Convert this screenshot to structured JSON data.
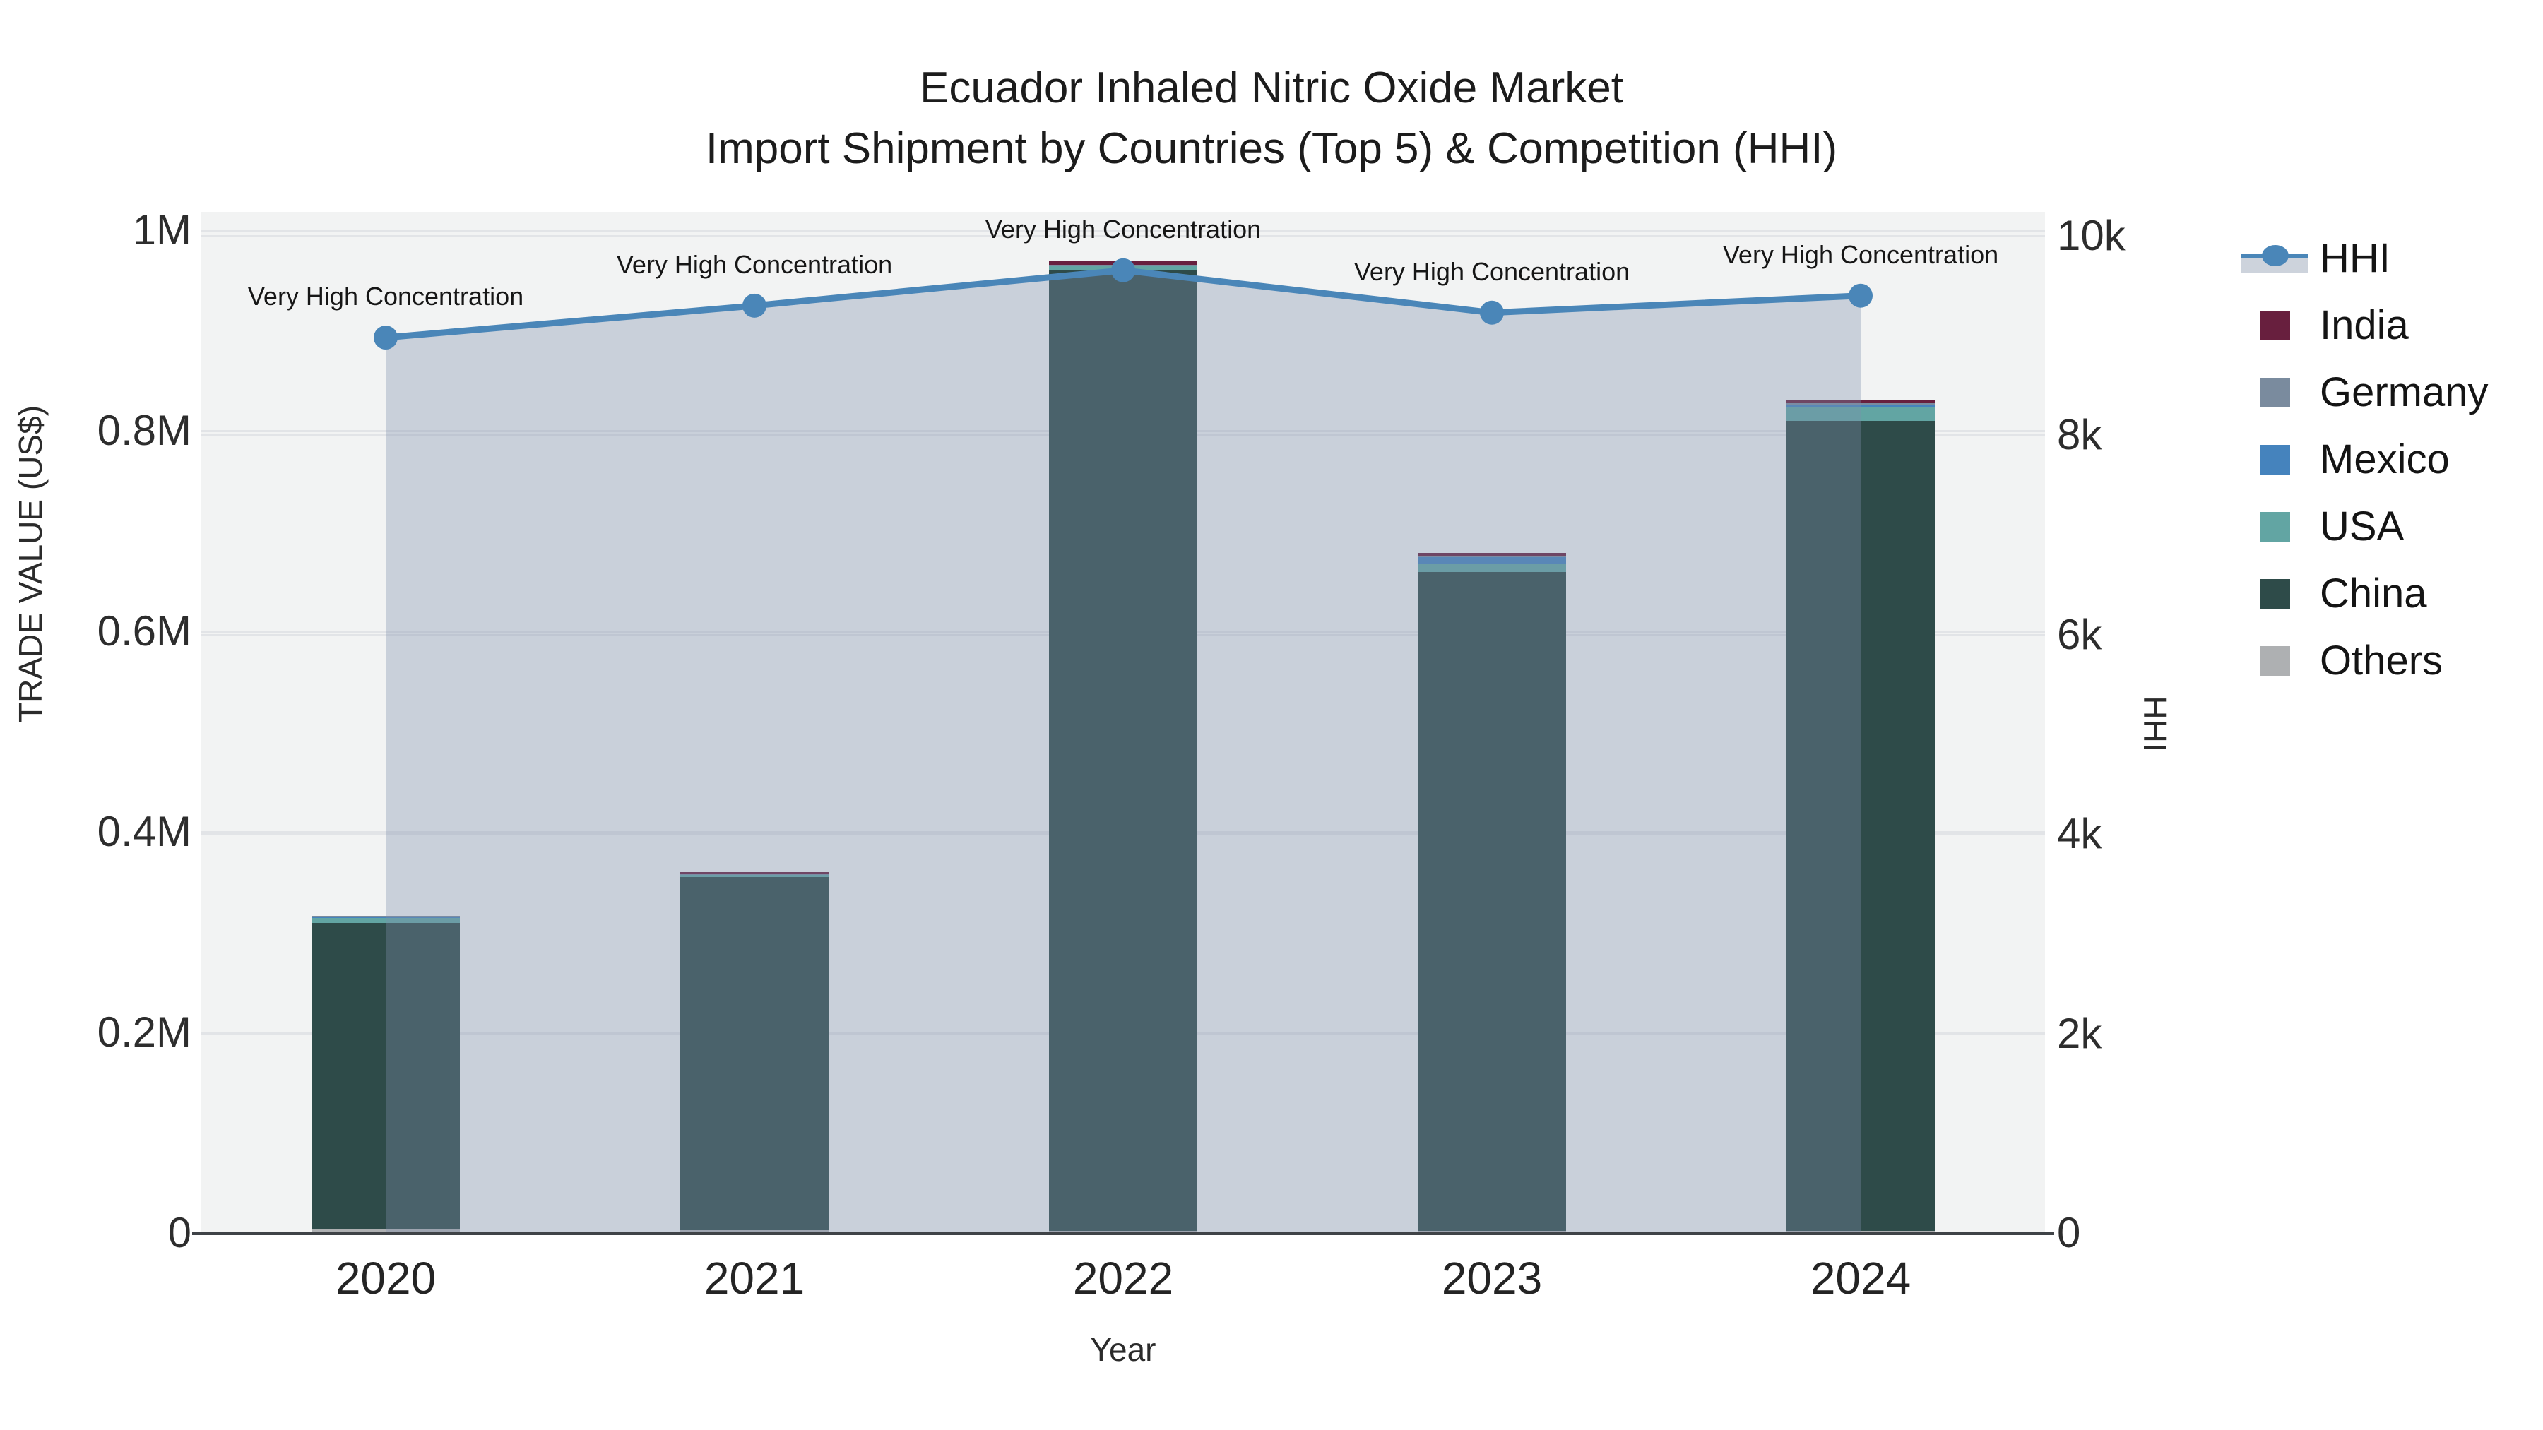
{
  "title": {
    "line1": "Ecuador Inhaled Nitric Oxide Market",
    "line2": "Import Shipment by Countries (Top 5) & Competition (HHI)"
  },
  "axes": {
    "y_left": {
      "title": "TRADE VALUE (US$)",
      "ticks": [
        {
          "label": "0",
          "value": 0
        },
        {
          "label": "0.2M",
          "value": 200000
        },
        {
          "label": "0.4M",
          "value": 400000
        },
        {
          "label": "0.6M",
          "value": 600000
        },
        {
          "label": "0.8M",
          "value": 800000
        },
        {
          "label": "1M",
          "value": 1000000
        }
      ]
    },
    "y_right": {
      "title": "HHI",
      "ticks": [
        {
          "label": "0",
          "value": 0
        },
        {
          "label": "2k",
          "value": 2000
        },
        {
          "label": "4k",
          "value": 4000
        },
        {
          "label": "6k",
          "value": 6000
        },
        {
          "label": "8k",
          "value": 8000
        },
        {
          "label": "10k",
          "value": 10000
        }
      ]
    },
    "x": {
      "title": "Year",
      "categories": [
        "2020",
        "2021",
        "2022",
        "2023",
        "2024"
      ]
    }
  },
  "legend": [
    {
      "label": "HHI",
      "type": "line",
      "color": "#4A86B8",
      "fill": "#CDD3DC"
    },
    {
      "label": "India",
      "type": "box",
      "color": "#681F3E"
    },
    {
      "label": "Germany",
      "type": "box",
      "color": "#7A8B9E"
    },
    {
      "label": "Mexico",
      "type": "box",
      "color": "#4583BD"
    },
    {
      "label": "USA",
      "type": "box",
      "color": "#62A5A3"
    },
    {
      "label": "China",
      "type": "box",
      "color": "#2E4B49"
    },
    {
      "label": "Others",
      "type": "box",
      "color": "#AEB0B2"
    }
  ],
  "chart_data": {
    "type": "combo-stacked-bar-line",
    "categories": [
      "2020",
      "2021",
      "2022",
      "2023",
      "2024"
    ],
    "bar_stack_order_bottom_to_top": [
      "Others",
      "China",
      "USA",
      "Mexico",
      "Germany",
      "India"
    ],
    "series": [
      {
        "name": "Others",
        "color": "#AEB0B2",
        "values": [
          4000,
          3000,
          2000,
          2000,
          2000
        ]
      },
      {
        "name": "China",
        "color": "#2E4B49",
        "values": [
          305000,
          352000,
          958000,
          657000,
          808000
        ]
      },
      {
        "name": "USA",
        "color": "#62A5A3",
        "values": [
          5000,
          2000,
          4000,
          8000,
          13000
        ]
      },
      {
        "name": "Mexico",
        "color": "#4583BD",
        "values": [
          500,
          0,
          500,
          7000,
          2500
        ]
      },
      {
        "name": "Germany",
        "color": "#7A8B9E",
        "values": [
          1500,
          500,
          1000,
          1500,
          2000
        ]
      },
      {
        "name": "India",
        "color": "#681F3E",
        "values": [
          0,
          2500,
          4500,
          2500,
          2500
        ]
      }
    ],
    "bar_totals": [
      316000,
      360000,
      970000,
      678000,
      830000
    ],
    "line_series": {
      "name": "HHI",
      "color": "#4A86B8",
      "area_fill": "rgba(126,143,172,0.35)",
      "values": [
        8980,
        9300,
        9655,
        9230,
        9400
      ]
    },
    "annotations": [
      "Very High Concentration",
      "Very High Concentration",
      "Very High Concentration",
      "Very High Concentration",
      "Very High Concentration"
    ],
    "ylim_left": [
      0,
      1000000
    ],
    "ylim_right": [
      0,
      10000
    ],
    "xlabel": "Year",
    "ylabel_left": "TRADE VALUE (US$)",
    "ylabel_right": "HHI",
    "grid": true,
    "legend_position": "right",
    "plot_background": "#F2F3F3"
  }
}
